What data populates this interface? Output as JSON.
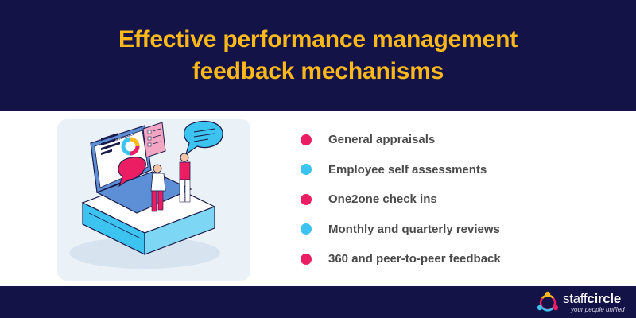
{
  "header": {
    "title_line1": "Effective performance management",
    "title_line2": "feedback mechanisms"
  },
  "illustration": {
    "screen_heading": "CAREER PERFORMANCE"
  },
  "feedback_items": [
    {
      "label": "General appraisals",
      "color": "#ec1e63"
    },
    {
      "label": "Employee self assessments",
      "color": "#3cc3ef"
    },
    {
      "label": "One2one check ins",
      "color": "#ec1e63"
    },
    {
      "label": "Monthly and quarterly reviews",
      "color": "#3cc3ef"
    },
    {
      "label": "360 and peer-to-peer feedback",
      "color": "#ec1e63"
    }
  ],
  "brand": {
    "name_part1": "staff",
    "name_part2": "circle",
    "tagline": "your people unified"
  },
  "colors": {
    "navy": "#141347",
    "title_yellow": "#fdb91c",
    "pink": "#ec1e63",
    "cyan": "#3cc3ef"
  }
}
